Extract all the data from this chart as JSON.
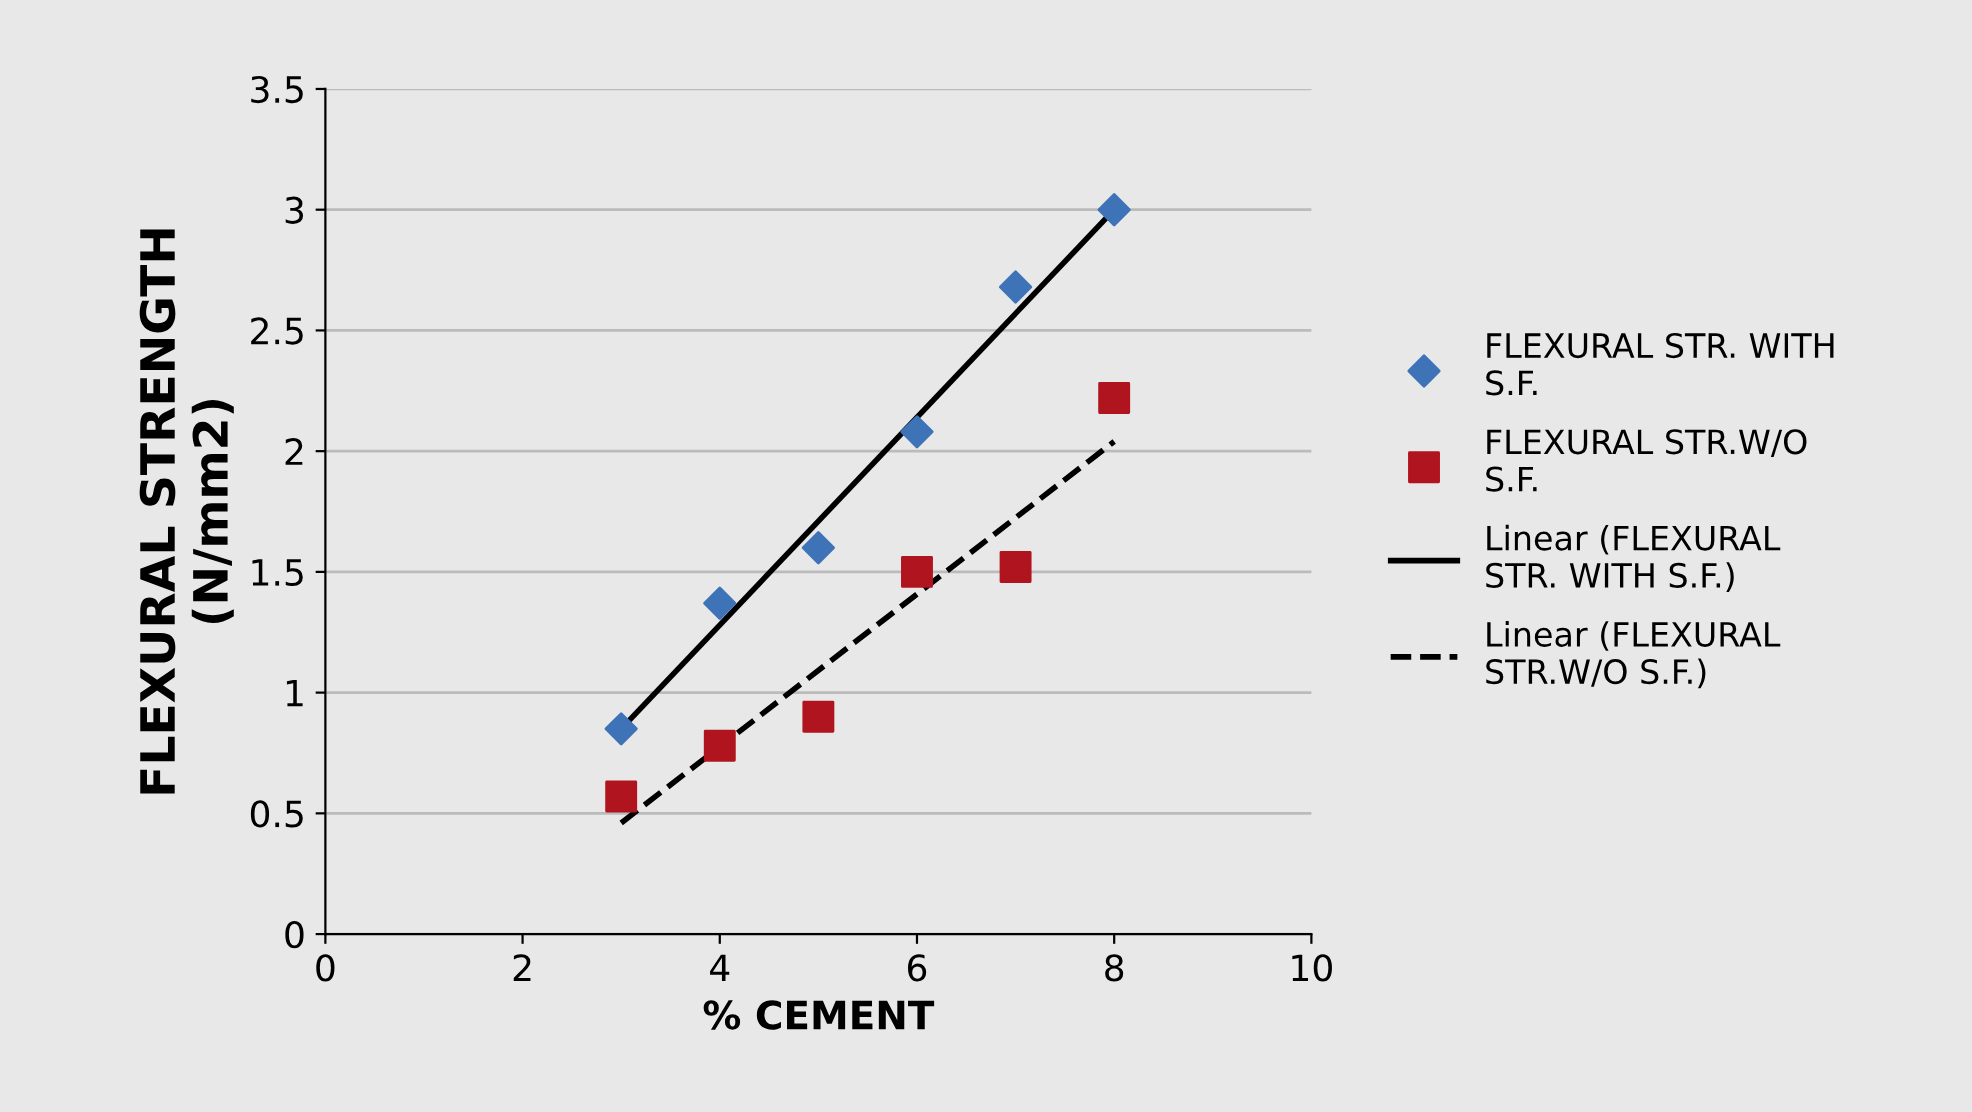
{
  "chart_data": {
    "type": "scatter",
    "xlabel": "% CEMENT",
    "ylabel": "FLEXURAL STRENGTH\n(N/mm2)",
    "xlim": [
      0,
      10
    ],
    "xticks": [
      0,
      2,
      4,
      6,
      8,
      10
    ],
    "ylim": [
      0,
      3.5
    ],
    "yticks": [
      0,
      0.5,
      1,
      1.5,
      2,
      2.5,
      3,
      3.5
    ],
    "grid": "y",
    "legend": "right",
    "series": [
      {
        "name": "FLEXURAL STR. WITH\nS.F.",
        "marker": "diamond",
        "color": "#3f73b8",
        "x": [
          3,
          4,
          5,
          6,
          7,
          8
        ],
        "values": [
          0.85,
          1.37,
          1.6,
          2.08,
          2.68,
          3.0
        ]
      },
      {
        "name": "FLEXURAL STR.W/O\nS.F.",
        "marker": "square",
        "color": "#b0141e",
        "x": [
          3,
          4,
          5,
          6,
          7,
          8
        ],
        "values": [
          0.57,
          0.78,
          0.9,
          1.5,
          1.52,
          2.22
        ]
      },
      {
        "name": "Linear (FLEXURAL\nSTR. WITH S.F.)",
        "type": "line",
        "line_style": "solid",
        "color": "#000000",
        "x": [
          3,
          8
        ],
        "values": [
          0.85,
          3.0
        ]
      },
      {
        "name": "Linear (FLEXURAL\nSTR.W/O S.F.)",
        "type": "line",
        "line_style": "dashed",
        "color": "#000000",
        "x": [
          3,
          8
        ],
        "values": [
          0.46,
          2.04
        ]
      }
    ]
  }
}
